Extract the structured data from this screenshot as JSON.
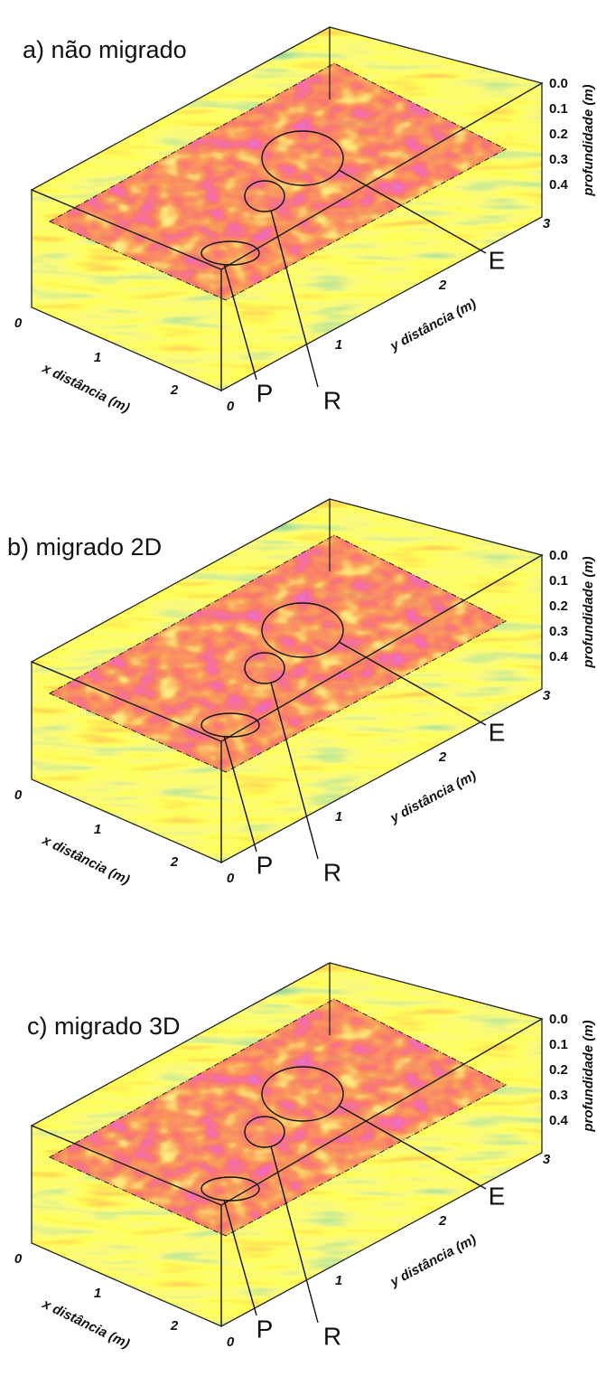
{
  "panels": [
    {
      "title": "a) não migrado",
      "x_label": "x distância (m)",
      "y_label": "y distância (m)",
      "z_label": "profundidade (m)",
      "x_ticks": [
        "0",
        "1",
        "2"
      ],
      "y_ticks": [
        "0",
        "1",
        "2",
        "3"
      ],
      "z_ticks": [
        "0.0",
        "0.1",
        "0.2",
        "0.3",
        "0.4"
      ],
      "markers": [
        "P",
        "R",
        "E"
      ]
    },
    {
      "title": "b) migrado 2D",
      "x_label": "x distância (m)",
      "y_label": "y distância (m)",
      "z_label": "profundidade (m)",
      "x_ticks": [
        "0",
        "1",
        "2"
      ],
      "y_ticks": [
        "0",
        "1",
        "2",
        "3"
      ],
      "z_ticks": [
        "0.0",
        "0.1",
        "0.2",
        "0.3",
        "0.4"
      ],
      "markers": [
        "P",
        "R",
        "E"
      ]
    },
    {
      "title": "c) migrado 3D",
      "x_label": "x distância (m)",
      "y_label": "y distância (m)",
      "z_label": "profundidade (m)",
      "x_ticks": [
        "0",
        "1",
        "2"
      ],
      "y_ticks": [
        "0",
        "1",
        "2",
        "3"
      ],
      "z_ticks": [
        "0.0",
        "0.1",
        "0.2",
        "0.3",
        "0.4"
      ],
      "markers": [
        "P",
        "R",
        "E"
      ]
    }
  ]
}
